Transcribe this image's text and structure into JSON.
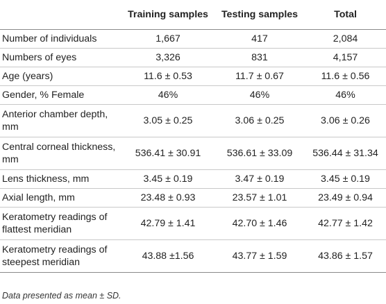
{
  "table": {
    "headers": [
      "",
      "Training samples",
      "Testing samples",
      "Total"
    ],
    "rows": [
      {
        "label": "Number of individuals",
        "values": [
          "1,667",
          "417",
          "2,084"
        ]
      },
      {
        "label": "Numbers of eyes",
        "values": [
          "3,326",
          "831",
          "4,157"
        ]
      },
      {
        "label": "Age (years)",
        "values": [
          "11.6 ± 0.53",
          "11.7 ± 0.67",
          "11.6 ± 0.56"
        ]
      },
      {
        "label": "Gender, % Female",
        "values": [
          "46%",
          "46%",
          "46%"
        ]
      },
      {
        "label": "Anterior chamber depth, mm",
        "values": [
          "3.05 ± 0.25",
          "3.06 ± 0.25",
          "3.06 ± 0.26"
        ]
      },
      {
        "label": "Central corneal thickness, mm",
        "values": [
          "536.41 ± 30.91",
          "536.61 ± 33.09",
          "536.44 ± 31.34"
        ]
      },
      {
        "label": "Lens thickness, mm",
        "values": [
          "3.45 ± 0.19",
          "3.47 ± 0.19",
          "3.45 ± 0.19"
        ]
      },
      {
        "label": "Axial length, mm",
        "values": [
          "23.48 ± 0.93",
          "23.57 ± 1.01",
          "23.49 ± 0.94"
        ]
      },
      {
        "label": "Keratometry readings of flattest meridian",
        "values": [
          "42.79 ± 1.41",
          "42.70 ± 1.46",
          "42.77 ± 1.42"
        ]
      },
      {
        "label": "Keratometry readings of steepest meridian",
        "values": [
          "43.88 ±1.56",
          "43.77 ± 1.59",
          "43.86 ± 1.57"
        ]
      }
    ]
  },
  "footnote": "Data presented as mean ± SD."
}
